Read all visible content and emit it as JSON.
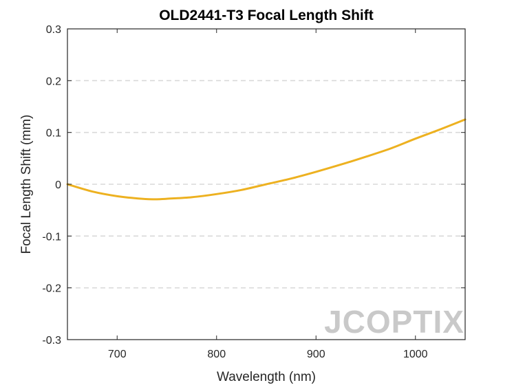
{
  "chart_data": {
    "type": "line",
    "title": "OLD2441-T3 Focal Length Shift",
    "xlabel": "Wavelength (nm)",
    "ylabel": "Focal Length Shift (mm)",
    "xlim": [
      650,
      1050
    ],
    "ylim": [
      -0.3,
      0.3
    ],
    "xticks": [
      700,
      800,
      900,
      1000
    ],
    "yticks": [
      -0.3,
      -0.2,
      -0.1,
      0,
      0.1,
      0.2,
      0.3
    ],
    "ytick_labels": [
      "-0.3",
      "-0.2",
      "-0.1",
      "0",
      "0.1",
      "0.2",
      "0.3"
    ],
    "grid": "horizontal dashed",
    "series": [
      {
        "color": "#EDB120",
        "x": [
          650,
          675,
          700,
          725,
          740,
          750,
          775,
          800,
          825,
          850,
          875,
          900,
          925,
          950,
          975,
          1000,
          1025,
          1050
        ],
        "y": [
          0.0,
          -0.014,
          -0.023,
          -0.028,
          -0.029,
          -0.028,
          -0.025,
          -0.019,
          -0.011,
          0.0,
          0.011,
          0.024,
          0.038,
          0.053,
          0.069,
          0.088,
          0.106,
          0.125
        ]
      }
    ]
  },
  "watermark": "JCOPTIX"
}
